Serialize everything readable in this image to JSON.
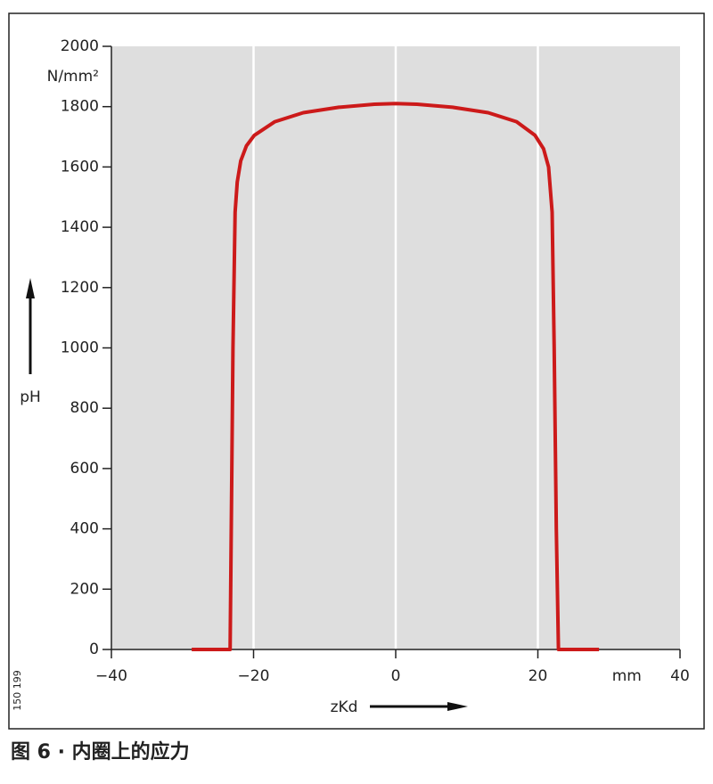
{
  "chart_data": {
    "type": "line",
    "caption": "图 6 · 内圈上的应力",
    "xlabel": "zKd",
    "x_unit": "mm",
    "ylabel": "pH",
    "y_unit": "N/mm²",
    "side_note": "150 199",
    "xlim": [
      -40,
      40
    ],
    "ylim": [
      0,
      2000
    ],
    "xticks": [
      {
        "value": -40,
        "label": "−40"
      },
      {
        "value": -20,
        "label": "−20"
      },
      0,
      20,
      40
    ],
    "yticks": [
      0,
      200,
      400,
      600,
      800,
      1000,
      1200,
      1400,
      1600,
      1800,
      2000
    ],
    "grid": "x",
    "series": [
      {
        "color": "#cc1a1a",
        "x": [
          -28.7,
          -23.3,
          -22.9,
          -22.6,
          -22.3,
          -21.8,
          -21,
          -19.9,
          -17,
          -13,
          -8,
          -3,
          0,
          3,
          8,
          13,
          17,
          19.6,
          20.8,
          21.5,
          22,
          22.3,
          22.6,
          22.9,
          28.6
        ],
        "values": [
          0,
          0,
          1000,
          1450,
          1550,
          1620,
          1670,
          1705,
          1750,
          1780,
          1798,
          1808,
          1810,
          1808,
          1798,
          1780,
          1750,
          1705,
          1660,
          1600,
          1450,
          1000,
          400,
          0,
          0
        ]
      }
    ]
  }
}
